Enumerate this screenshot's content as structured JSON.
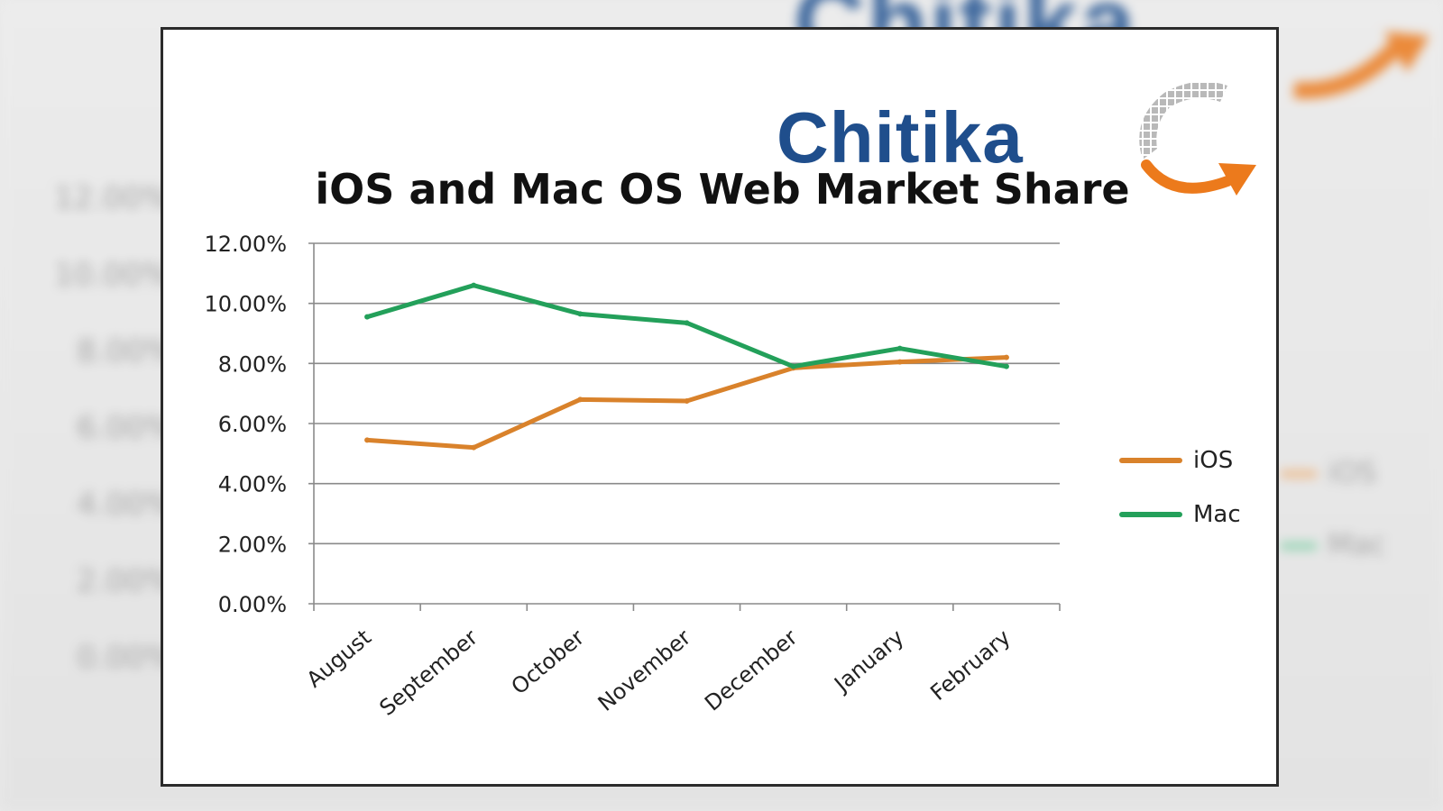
{
  "brand": {
    "name": "Chitika",
    "blue": "#1f4e8c",
    "orange": "#ec7a1c"
  },
  "chart_data": {
    "type": "line",
    "title": "iOS and Mac OS Web Market Share",
    "categories": [
      "August",
      "September",
      "October",
      "November",
      "December",
      "January",
      "February"
    ],
    "series": [
      {
        "name": "iOS",
        "color": "#d9822b",
        "values": [
          5.45,
          5.2,
          6.8,
          6.75,
          7.85,
          8.05,
          8.2
        ]
      },
      {
        "name": "Mac",
        "color": "#23a05a",
        "values": [
          9.55,
          10.6,
          9.65,
          9.35,
          7.9,
          8.5,
          7.9
        ]
      }
    ],
    "ylim": [
      0,
      12
    ],
    "yticks": [
      "0.00%",
      "2.00%",
      "4.00%",
      "6.00%",
      "8.00%",
      "10.00%",
      "12.00%"
    ],
    "grid": true,
    "legend": "right"
  }
}
